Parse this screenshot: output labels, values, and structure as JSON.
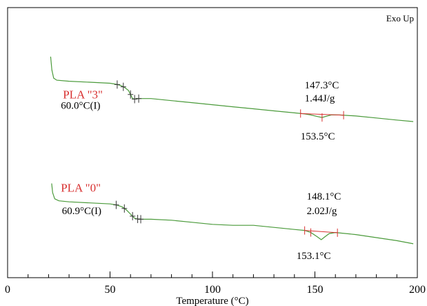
{
  "chart_data": {
    "type": "line",
    "title": "",
    "corner_label": "Exo Up",
    "xlabel": "Temperature (°C)",
    "ylabel": "",
    "xlim": [
      0,
      200
    ],
    "x_ticks": [
      0,
      50,
      100,
      150,
      200
    ],
    "x_tick_labels": [
      "0",
      "50",
      "100",
      "150",
      "200"
    ],
    "x_minor_step": 10,
    "grid": false,
    "legend": "none",
    "series": [
      {
        "name": "PLA \"3\"",
        "color": "#4a9a3a",
        "label_color": "#d83030",
        "label_at": [
          27,
          0.86
        ],
        "points": [
          [
            21,
            1.27
          ],
          [
            21.6,
            1.14
          ],
          [
            22.5,
            1.06
          ],
          [
            24,
            1.04
          ],
          [
            30,
            1.03
          ],
          [
            40,
            1.02
          ],
          [
            50,
            1.01
          ],
          [
            53,
            1.0
          ],
          [
            55,
            0.99
          ],
          [
            57,
            0.97
          ],
          [
            59,
            0.94
          ],
          [
            60,
            0.9
          ],
          [
            61,
            0.86
          ],
          [
            62,
            0.855
          ],
          [
            63,
            0.86
          ],
          [
            65,
            0.86
          ],
          [
            70,
            0.86
          ],
          [
            80,
            0.84
          ],
          [
            90,
            0.82
          ],
          [
            100,
            0.8
          ],
          [
            110,
            0.78
          ],
          [
            120,
            0.76
          ],
          [
            130,
            0.74
          ],
          [
            140,
            0.72
          ],
          [
            145,
            0.71
          ],
          [
            148,
            0.7
          ],
          [
            151,
            0.685
          ],
          [
            153.5,
            0.675
          ],
          [
            156,
            0.69
          ],
          [
            158,
            0.7
          ],
          [
            162,
            0.7
          ],
          [
            170,
            0.69
          ],
          [
            180,
            0.67
          ],
          [
            190,
            0.65
          ],
          [
            198,
            0.635
          ]
        ],
        "annotations": [
          {
            "text": "60.0°C(I)",
            "at": [
              26,
              0.76
            ]
          },
          {
            "text": "147.3°C",
            "at": [
              145,
              0.96
            ]
          },
          {
            "text": "1.44J/g",
            "at": [
              145,
              0.83
            ]
          },
          {
            "text": "153.5°C",
            "at": [
              143,
              0.46
            ]
          }
        ],
        "black_markers": [
          53.5,
          56.5,
          60,
          62,
          64
        ],
        "red_markers": [
          143,
          153.5,
          164
        ]
      },
      {
        "name": "PLA \"0\"",
        "color": "#4a9a3a",
        "label_color": "#d83030",
        "label_at": [
          26,
          -0.05
        ],
        "points": [
          [
            21.5,
            0.03
          ],
          [
            22,
            -0.06
          ],
          [
            23,
            -0.12
          ],
          [
            25,
            -0.14
          ],
          [
            30,
            -0.15
          ],
          [
            40,
            -0.16
          ],
          [
            50,
            -0.17
          ],
          [
            53,
            -0.18
          ],
          [
            56,
            -0.2
          ],
          [
            58,
            -0.23
          ],
          [
            60,
            -0.27
          ],
          [
            62,
            -0.31
          ],
          [
            64,
            -0.32
          ],
          [
            66,
            -0.32
          ],
          [
            70,
            -0.32
          ],
          [
            80,
            -0.33
          ],
          [
            90,
            -0.35
          ],
          [
            100,
            -0.37
          ],
          [
            110,
            -0.38
          ],
          [
            120,
            -0.38
          ],
          [
            130,
            -0.4
          ],
          [
            140,
            -0.42
          ],
          [
            145,
            -0.43
          ],
          [
            148,
            -0.45
          ],
          [
            151,
            -0.49
          ],
          [
            153.1,
            -0.52
          ],
          [
            155,
            -0.49
          ],
          [
            157,
            -0.46
          ],
          [
            160,
            -0.45
          ],
          [
            170,
            -0.47
          ],
          [
            180,
            -0.5
          ],
          [
            190,
            -0.53
          ],
          [
            198,
            -0.56
          ]
        ],
        "annotations": [
          {
            "text": "60.9°C(I)",
            "at": [
              26.5,
              -0.27
            ]
          },
          {
            "text": "148.1°C",
            "at": [
              146,
              -0.13
            ]
          },
          {
            "text": "2.02J/g",
            "at": [
              146,
              -0.27
            ]
          },
          {
            "text": "153.1°C",
            "at": [
              141,
              -0.71
            ]
          }
        ],
        "black_markers": [
          53,
          57,
          61,
          63.5,
          65
        ],
        "red_markers": [
          145,
          148,
          161
        ]
      }
    ]
  }
}
